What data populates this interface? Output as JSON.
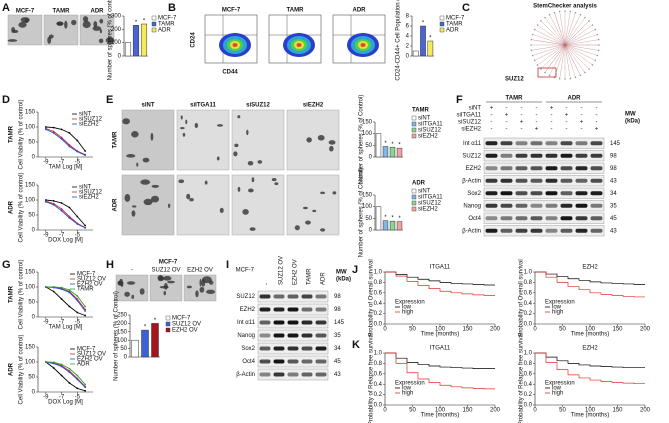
{
  "A": {
    "letter": "A",
    "images": [
      "MCF-7",
      "TAMR",
      "ADR"
    ],
    "bar": {
      "legend": [
        "MCF-7",
        "TAMR",
        "ADR"
      ],
      "colors": [
        "#ffffff",
        "#4a63d6",
        "#f3ea5c"
      ],
      "values": [
        100,
        230,
        240
      ],
      "stars": [
        null,
        "*",
        "*"
      ],
      "ylim": [
        0,
        300
      ],
      "yticks": [
        0,
        100,
        200,
        300
      ],
      "ylabel": "Number of spheres (% of control)"
    }
  },
  "B": {
    "letter": "B",
    "plots": [
      "MCF-7",
      "TAMR",
      "ADR"
    ],
    "yaxis": "CD24",
    "xaxis": "CD44",
    "bar": {
      "legend": [
        "MCF-7",
        "TAMR",
        "ADR"
      ],
      "colors": [
        "#ffffff",
        "#4a63d6",
        "#f3ea5c"
      ],
      "values": [
        1,
        6,
        3
      ],
      "stars": [
        null,
        "*",
        "*"
      ],
      "ylim": [
        0,
        8
      ],
      "yticks": [
        0,
        2,
        4,
        6,
        8
      ],
      "ylabel": "CD24-CD44+ Cell Population (%)"
    }
  },
  "C": {
    "letter": "C",
    "title": "StemChecker analysis",
    "highlight": "SUZ12"
  },
  "D": {
    "letter": "D",
    "charts": [
      {
        "title": "TAMR",
        "xlabel": "TAM Log [M]",
        "ylabel": "Cell Viability (% of control)",
        "x": [
          -9,
          -8,
          -7,
          -6,
          -5,
          -4
        ],
        "xlim": [
          -10,
          -3
        ],
        "xticks": [
          -9,
          -7,
          -5
        ],
        "ylim": [
          0,
          150
        ],
        "yticks": [
          0,
          50,
          100,
          150
        ],
        "series": [
          {
            "name": "siNT",
            "color": "#000000",
            "values": [
              100,
              98,
              92,
              80,
              55,
              20
            ]
          },
          {
            "name": "siSUZ12",
            "color": "#d62728",
            "values": [
              95,
              85,
              65,
              40,
              20,
              8
            ]
          },
          {
            "name": "siEZH2",
            "color": "#1f4fd6",
            "values": [
              92,
              80,
              60,
              35,
              18,
              6
            ]
          }
        ]
      },
      {
        "title": "ADR",
        "xlabel": "DOX Log [M]",
        "ylabel": "Cell Viability (% of control)",
        "x": [
          -9,
          -8,
          -7,
          -6,
          -5,
          -4
        ],
        "xlim": [
          -10,
          -3
        ],
        "xticks": [
          -9,
          -7,
          -5
        ],
        "ylim": [
          0,
          150
        ],
        "yticks": [
          0,
          50,
          100,
          150
        ],
        "series": [
          {
            "name": "siNT",
            "color": "#000000",
            "values": [
              100,
              97,
              90,
              75,
              45,
              15
            ]
          },
          {
            "name": "siSUZ12",
            "color": "#d62728",
            "values": [
              96,
              88,
              70,
              45,
              22,
              8
            ]
          },
          {
            "name": "siEZH2",
            "color": "#1f4fd6",
            "values": [
              94,
              84,
              64,
              40,
              20,
              7
            ]
          }
        ]
      }
    ]
  },
  "E": {
    "letter": "E",
    "columns": [
      "siNT",
      "siITGA11",
      "siSUZ12",
      "siEZH2"
    ],
    "rows": [
      "TAMR",
      "ADR"
    ],
    "bars": [
      {
        "title": "TAMR",
        "legend": [
          "siNT",
          "siITGA11",
          "siSUZ12",
          "siEZH2"
        ],
        "colors": [
          "#ffffff",
          "#7fb8e8",
          "#8fd48f",
          "#f2a2a8"
        ],
        "values": [
          100,
          45,
          42,
          38
        ],
        "stars": [
          null,
          "*",
          "*",
          "*"
        ],
        "ylim": [
          0,
          150
        ],
        "yticks": [
          0,
          50,
          100,
          150
        ],
        "ylabel": "Number of spheres (% of Control)"
      },
      {
        "title": "ADR",
        "legend": [
          "siNT",
          "siITGA11",
          "siSUZ12",
          "siEZH2"
        ],
        "colors": [
          "#ffffff",
          "#7fb8e8",
          "#8fd48f",
          "#f2a2a8"
        ],
        "values": [
          100,
          40,
          38,
          36
        ],
        "stars": [
          null,
          "*",
          "*",
          "*"
        ],
        "ylim": [
          0,
          150
        ],
        "yticks": [
          0,
          50,
          100,
          150
        ],
        "ylabel": "Number of spheres (% of Control)"
      }
    ]
  },
  "F": {
    "letter": "F",
    "groups": [
      "TAMR",
      "ADR"
    ],
    "mw_header": "MW",
    "mw_unit": "(kDa)",
    "conditions": [
      {
        "label": "siNT",
        "signs": [
          "+",
          "-",
          "-",
          "-",
          "+",
          "-",
          "-",
          "-"
        ]
      },
      {
        "label": "siITGA11",
        "signs": [
          "-",
          "+",
          "-",
          "-",
          "-",
          "+",
          "-",
          "-"
        ]
      },
      {
        "label": "siSUZ12",
        "signs": [
          "-",
          "-",
          "+",
          "-",
          "-",
          "-",
          "+",
          "-"
        ]
      },
      {
        "label": "siEZH2",
        "signs": [
          "-",
          "-",
          "-",
          "+",
          "-",
          "-",
          "-",
          "+"
        ]
      }
    ],
    "blots": [
      {
        "protein": "Int α11",
        "mw": 145
      },
      {
        "protein": "SUZ12",
        "mw": 98
      },
      {
        "protein": "EZH2",
        "mw": 98
      },
      {
        "protein": "β-Actin",
        "mw": 43
      },
      {
        "protein": "Sox2",
        "mw": 34
      },
      {
        "protein": "Nanog",
        "mw": 35
      },
      {
        "protein": "Oct4",
        "mw": 45
      },
      {
        "protein": "β-Actin",
        "mw": 43
      }
    ]
  },
  "G": {
    "letter": "G",
    "charts": [
      {
        "title": "TAMR",
        "xlabel": "TAM Log [M]",
        "ylabel": "Cell Viability (% of control)",
        "x": [
          -9,
          -8,
          -7,
          -6,
          -5,
          -4
        ],
        "xlim": [
          -10,
          -3
        ],
        "xticks": [
          -9,
          -7,
          -5
        ],
        "ylim": [
          0,
          150
        ],
        "yticks": [
          0,
          50,
          100,
          150
        ],
        "series": [
          {
            "name": "MCF-7",
            "color": "#000000",
            "values": [
              100,
              85,
              60,
              35,
              15,
              5
            ]
          },
          {
            "name": "SUZ12 OV",
            "color": "#d62728",
            "values": [
              100,
              100,
              95,
              85,
              60,
              25
            ]
          },
          {
            "name": "EZH2 OV",
            "color": "#1f4fd6",
            "values": [
              100,
              98,
              93,
              82,
              55,
              20
            ]
          },
          {
            "name": "TAMR",
            "color": "#2ca02c",
            "values": [
              100,
              100,
              98,
              90,
              70,
              35
            ]
          }
        ]
      },
      {
        "title": "ADR",
        "xlabel": "DOX Log [M]",
        "ylabel": "Cell Viability (% of control)",
        "x": [
          -9,
          -8,
          -7,
          -6,
          -5,
          -4
        ],
        "xlim": [
          -10,
          -3
        ],
        "xticks": [
          -9,
          -7,
          -5
        ],
        "ylim": [
          0,
          150
        ],
        "yticks": [
          0,
          50,
          100,
          150
        ],
        "series": [
          {
            "name": "MCF-7",
            "color": "#000000",
            "values": [
              100,
              80,
              55,
              30,
              12,
              4
            ]
          },
          {
            "name": "SUZ12 OV",
            "color": "#d62728",
            "values": [
              100,
              97,
              88,
              70,
              45,
              18
            ]
          },
          {
            "name": "EZH2 OV",
            "color": "#1f4fd6",
            "values": [
              100,
              95,
              85,
              66,
              42,
              16
            ]
          },
          {
            "name": "ADR",
            "color": "#2ca02c",
            "values": [
              100,
              99,
              92,
              78,
              55,
              25
            ]
          }
        ]
      }
    ]
  },
  "H": {
    "letter": "H",
    "header": "MCF-7",
    "columns": [
      "-",
      "SUZ12 OV",
      "EZH2 OV"
    ],
    "bar": {
      "legend": [
        "MCF-7",
        "SUZ12 OV",
        "EZH2 OV"
      ],
      "colors": [
        "#ffffff",
        "#3b63d6",
        "#a3141c"
      ],
      "values": [
        100,
        160,
        200
      ],
      "stars": [
        null,
        "*",
        "*"
      ],
      "ylim": [
        0,
        250
      ],
      "yticks": [
        0,
        50,
        100,
        150,
        200,
        250
      ],
      "ylabel": "Number of spheres (% of Control)"
    }
  },
  "I": {
    "letter": "I",
    "row_label": "MCF-7",
    "lanes": [
      "-",
      "SUZ12 OV",
      "EZH2 OV",
      "TAMR",
      "ADR"
    ],
    "mw_header": "MW",
    "mw_unit": "(kDa)",
    "blots": [
      {
        "protein": "SUZ12",
        "mw": 98
      },
      {
        "protein": "EZH2",
        "mw": 98
      },
      {
        "protein": "Int α11",
        "mw": 145
      },
      {
        "protein": "Nanog",
        "mw": 35
      },
      {
        "protein": "Sox2",
        "mw": 34
      },
      {
        "protein": "Oct4",
        "mw": 45
      },
      {
        "protein": "β-Actin",
        "mw": 43
      }
    ]
  },
  "J": {
    "letter": "J",
    "charts": [
      {
        "title": "ITGA11",
        "ylabel": "Probability of Overall survival",
        "xlabel": "Time (months)",
        "legend_title": "Expression",
        "x": [
          0,
          20,
          40,
          60,
          80,
          100,
          120,
          140,
          160,
          180,
          200
        ],
        "xlim": [
          0,
          200
        ],
        "xticks": [
          0,
          50,
          100,
          150,
          200
        ],
        "ylim": [
          0,
          1
        ],
        "yticks": [
          {
            "value": 0,
            "label": "0.0"
          },
          0.2,
          0.4,
          0.6,
          0.8,
          {
            "value": 1,
            "label": "1.0"
          }
        ],
        "series": [
          {
            "name": "low",
            "color": "#000000",
            "values": [
              1,
              0.95,
              0.9,
              0.86,
              0.83,
              0.8,
              0.78,
              0.77,
              0.76,
              0.75,
              0.75
            ]
          },
          {
            "name": "high",
            "color": "#e0302a",
            "values": [
              1,
              0.92,
              0.82,
              0.74,
              0.68,
              0.63,
              0.6,
              0.58,
              0.56,
              0.55,
              0.55
            ]
          }
        ]
      },
      {
        "title": "EZH2",
        "ylabel": "Probability of Overall survival",
        "xlabel": "Time (months)",
        "legend_title": "Expression",
        "x": [
          0,
          20,
          40,
          60,
          80,
          100,
          120,
          140,
          160,
          180,
          200
        ],
        "xlim": [
          0,
          200
        ],
        "xticks": [
          0,
          50,
          100,
          150,
          200
        ],
        "ylim": [
          0,
          1
        ],
        "yticks": [
          {
            "value": 0,
            "label": "0.0"
          },
          0.2,
          0.4,
          0.6,
          0.8,
          {
            "value": 1,
            "label": "1.0"
          }
        ],
        "series": [
          {
            "name": "low",
            "color": "#000000",
            "values": [
              1,
              0.96,
              0.91,
              0.87,
              0.84,
              0.81,
              0.79,
              0.78,
              0.77,
              0.76,
              0.76
            ]
          },
          {
            "name": "high",
            "color": "#e0302a",
            "values": [
              1,
              0.9,
              0.8,
              0.72,
              0.66,
              0.6,
              0.57,
              0.55,
              0.53,
              0.52,
              0.52
            ]
          }
        ]
      }
    ]
  },
  "K": {
    "letter": "K",
    "charts": [
      {
        "title": "ITGA11",
        "ylabel": "Probability of Relapse free survival",
        "xlabel": "Time (months)",
        "legend_title": "Expression",
        "x": [
          0,
          20,
          40,
          60,
          80,
          100,
          120,
          140,
          160,
          180,
          200
        ],
        "xlim": [
          0,
          200
        ],
        "xticks": [
          0,
          50,
          100,
          150,
          200
        ],
        "ylim": [
          0,
          1
        ],
        "yticks": [
          {
            "value": 0,
            "label": "0.0"
          },
          0.2,
          0.4,
          0.6,
          0.8,
          {
            "value": 1,
            "label": "1.0"
          }
        ],
        "series": [
          {
            "name": "low",
            "color": "#000000",
            "values": [
              1,
              0.9,
              0.82,
              0.78,
              0.75,
              0.73,
              0.72,
              0.71,
              0.7,
              0.7,
              0.7
            ]
          },
          {
            "name": "high",
            "color": "#e0302a",
            "values": [
              1,
              0.8,
              0.62,
              0.5,
              0.43,
              0.38,
              0.35,
              0.33,
              0.32,
              0.31,
              0.31
            ]
          }
        ]
      },
      {
        "title": "EZH2",
        "ylabel": "Probability of Relapse free survival",
        "xlabel": "Time (months)",
        "legend_title": "Expression",
        "x": [
          0,
          20,
          40,
          60,
          80,
          100,
          120,
          140,
          160,
          180,
          200
        ],
        "xlim": [
          0,
          200
        ],
        "xticks": [
          0,
          50,
          100,
          150,
          200
        ],
        "ylim": [
          0,
          1
        ],
        "yticks": [
          {
            "value": 0,
            "label": "0.0"
          },
          0.2,
          0.4,
          0.6,
          0.8,
          {
            "value": 1,
            "label": "1.0"
          }
        ],
        "series": [
          {
            "name": "low",
            "color": "#000000",
            "values": [
              1,
              0.92,
              0.85,
              0.8,
              0.77,
              0.75,
              0.74,
              0.73,
              0.72,
              0.72,
              0.72
            ]
          },
          {
            "name": "high",
            "color": "#e0302a",
            "values": [
              1,
              0.82,
              0.68,
              0.58,
              0.52,
              0.48,
              0.45,
              0.43,
              0.42,
              0.41,
              0.41
            ]
          }
        ]
      }
    ]
  }
}
